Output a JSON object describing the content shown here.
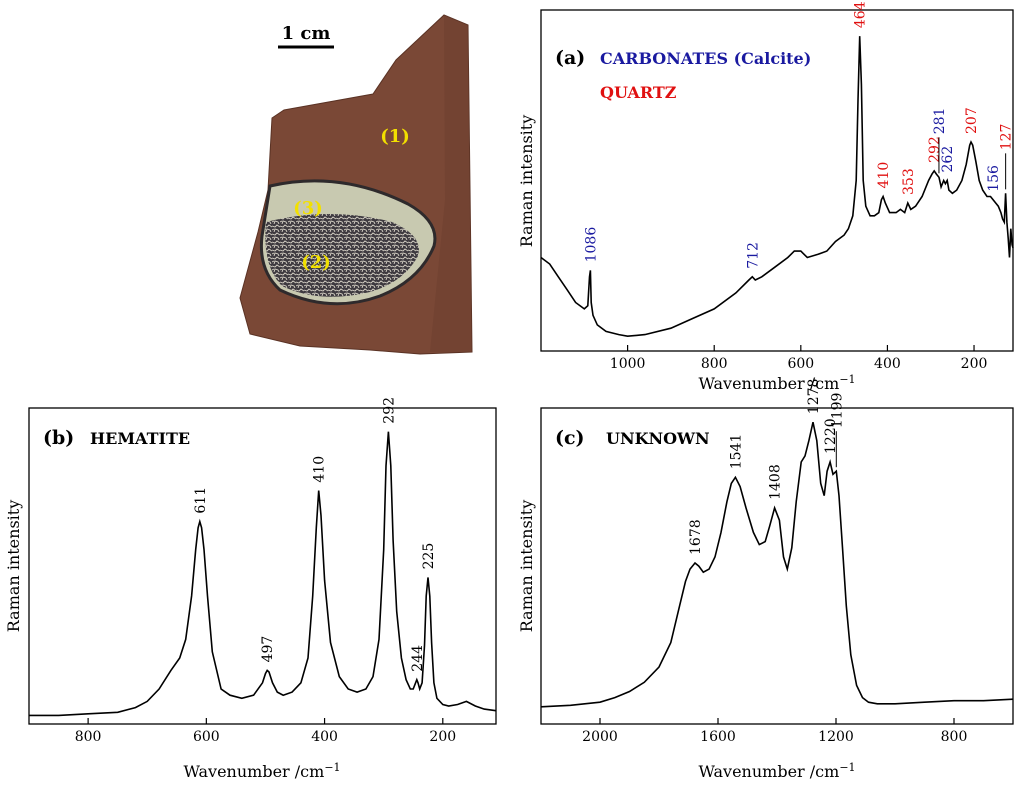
{
  "colors": {
    "carbonate": "#1a1aa0",
    "quartz": "#e01010",
    "spectrum": "#000000",
    "zone_label": "#f2e000",
    "sample_rock": "#7a4836"
  },
  "sample_photo": {
    "scale_bar_label": "1 cm",
    "zone_labels": [
      "(1)",
      "(2)",
      "(3)"
    ]
  },
  "chart_data": [
    {
      "panel": "(a)",
      "type": "line",
      "title_lines": [
        {
          "text": "CARBONATES (Calcite)",
          "color": "#1a1aa0"
        },
        {
          "text": "QUARTZ",
          "color": "#e01010"
        }
      ],
      "xlabel": "Wavenumber /cm",
      "xlabel_sup": "−1",
      "ylabel": "Raman intensity",
      "xlim": [
        1200,
        110
      ],
      "ylim": [
        0,
        1
      ],
      "x_ticks": [
        1000,
        800,
        600,
        400,
        200
      ],
      "x": [
        1200,
        1180,
        1160,
        1140,
        1120,
        1100,
        1092,
        1088,
        1086,
        1084,
        1080,
        1070,
        1050,
        1020,
        1000,
        960,
        900,
        850,
        800,
        750,
        720,
        712,
        705,
        690,
        660,
        630,
        615,
        600,
        585,
        560,
        540,
        520,
        500,
        490,
        480,
        472,
        468,
        464,
        460,
        456,
        450,
        440,
        430,
        420,
        414,
        410,
        405,
        395,
        380,
        370,
        360,
        353,
        346,
        335,
        320,
        305,
        297,
        292,
        287,
        281,
        276,
        270,
        266,
        262,
        258,
        250,
        240,
        228,
        218,
        210,
        207,
        203,
        196,
        188,
        180,
        170,
        162,
        156,
        150,
        144,
        138,
        134,
        130,
        127,
        124,
        121,
        118,
        115,
        112,
        110
      ],
      "y": [
        0.26,
        0.24,
        0.2,
        0.16,
        0.12,
        0.1,
        0.11,
        0.2,
        0.22,
        0.12,
        0.08,
        0.05,
        0.03,
        0.02,
        0.015,
        0.02,
        0.04,
        0.07,
        0.1,
        0.15,
        0.19,
        0.2,
        0.19,
        0.2,
        0.23,
        0.26,
        0.28,
        0.28,
        0.26,
        0.27,
        0.28,
        0.31,
        0.33,
        0.35,
        0.39,
        0.5,
        0.75,
        0.95,
        0.8,
        0.5,
        0.42,
        0.39,
        0.39,
        0.4,
        0.44,
        0.45,
        0.43,
        0.4,
        0.4,
        0.41,
        0.4,
        0.43,
        0.41,
        0.42,
        0.45,
        0.5,
        0.52,
        0.53,
        0.52,
        0.51,
        0.48,
        0.5,
        0.49,
        0.5,
        0.47,
        0.46,
        0.47,
        0.5,
        0.55,
        0.61,
        0.62,
        0.61,
        0.56,
        0.5,
        0.47,
        0.45,
        0.45,
        0.44,
        0.43,
        0.42,
        0.4,
        0.38,
        0.37,
        0.46,
        0.37,
        0.32,
        0.26,
        0.35,
        0.3,
        0.29
      ],
      "annotations": [
        {
          "label": "1086",
          "x": 1086,
          "y": 0.22,
          "color": "#1a1aa0"
        },
        {
          "label": "712",
          "x": 712,
          "y": 0.2,
          "color": "#1a1aa0"
        },
        {
          "label": "464",
          "x": 464,
          "y": 0.95,
          "color": "#e01010"
        },
        {
          "label": "410",
          "x": 410,
          "y": 0.45,
          "color": "#e01010"
        },
        {
          "label": "353",
          "x": 353,
          "y": 0.43,
          "color": "#e01010"
        },
        {
          "label": "292",
          "x": 292,
          "y": 0.53,
          "color": "#e01010"
        },
        {
          "label": "262",
          "x": 262,
          "y": 0.5,
          "color": "#1a1aa0"
        },
        {
          "label": "281",
          "x": 281,
          "y": 0.51,
          "color": "#1a1aa0",
          "leader": true
        },
        {
          "label": "207",
          "x": 207,
          "y": 0.62,
          "color": "#e01010"
        },
        {
          "label": "156",
          "x": 156,
          "y": 0.44,
          "color": "#1a1aa0"
        },
        {
          "label": "127",
          "x": 127,
          "y": 0.46,
          "color": "#e01010",
          "leader": true
        }
      ]
    },
    {
      "panel": "(b)",
      "type": "line",
      "title": "HEMATITE",
      "xlabel": "Wavenumber /cm",
      "xlabel_sup": "−1",
      "ylabel": "Raman intensity",
      "xlim": [
        900,
        110
      ],
      "ylim": [
        0,
        1
      ],
      "x_ticks": [
        800,
        600,
        400,
        200
      ],
      "x": [
        900,
        850,
        800,
        750,
        720,
        700,
        680,
        660,
        645,
        635,
        625,
        618,
        614,
        611,
        608,
        604,
        598,
        590,
        575,
        560,
        540,
        520,
        505,
        500,
        497,
        494,
        488,
        480,
        470,
        455,
        440,
        428,
        420,
        414,
        410,
        406,
        400,
        390,
        375,
        360,
        345,
        330,
        318,
        308,
        300,
        296,
        292,
        288,
        284,
        278,
        270,
        262,
        255,
        250,
        246,
        244,
        242,
        239,
        235,
        231,
        228,
        225,
        222,
        219,
        215,
        210,
        200,
        190,
        175,
        160,
        145,
        130,
        110
      ],
      "y": [
        0.015,
        0.015,
        0.02,
        0.025,
        0.04,
        0.06,
        0.1,
        0.16,
        0.2,
        0.26,
        0.4,
        0.55,
        0.62,
        0.64,
        0.62,
        0.55,
        0.4,
        0.22,
        0.1,
        0.08,
        0.07,
        0.08,
        0.12,
        0.15,
        0.16,
        0.155,
        0.12,
        0.09,
        0.08,
        0.09,
        0.12,
        0.2,
        0.4,
        0.62,
        0.74,
        0.66,
        0.45,
        0.25,
        0.14,
        0.1,
        0.09,
        0.1,
        0.14,
        0.26,
        0.55,
        0.82,
        0.93,
        0.82,
        0.58,
        0.35,
        0.2,
        0.13,
        0.1,
        0.1,
        0.12,
        0.13,
        0.12,
        0.1,
        0.12,
        0.24,
        0.4,
        0.46,
        0.4,
        0.25,
        0.12,
        0.07,
        0.05,
        0.045,
        0.05,
        0.06,
        0.045,
        0.035,
        0.03
      ],
      "annotations": [
        {
          "label": "611",
          "x": 611,
          "y": 0.64
        },
        {
          "label": "497",
          "x": 497,
          "y": 0.16
        },
        {
          "label": "410",
          "x": 410,
          "y": 0.74
        },
        {
          "label": "292",
          "x": 292,
          "y": 0.93
        },
        {
          "label": "244",
          "x": 244,
          "y": 0.13
        },
        {
          "label": "225",
          "x": 225,
          "y": 0.46
        }
      ]
    },
    {
      "panel": "(c)",
      "type": "line",
      "title": "UNKNOWN",
      "xlabel": "Wavenumber /cm",
      "xlabel_sup": "−1",
      "ylabel": "Raman intensity",
      "xlim": [
        2200,
        600
      ],
      "ylim": [
        0,
        1
      ],
      "x_ticks": [
        2000,
        1600,
        1200,
        800
      ],
      "x": [
        2200,
        2100,
        2000,
        1950,
        1900,
        1850,
        1800,
        1760,
        1730,
        1710,
        1695,
        1678,
        1665,
        1650,
        1630,
        1610,
        1590,
        1570,
        1555,
        1541,
        1525,
        1505,
        1480,
        1460,
        1440,
        1425,
        1408,
        1392,
        1378,
        1365,
        1350,
        1335,
        1318,
        1305,
        1292,
        1278,
        1265,
        1252,
        1240,
        1230,
        1220,
        1210,
        1199,
        1190,
        1178,
        1165,
        1150,
        1130,
        1110,
        1090,
        1060,
        1000,
        900,
        800,
        700,
        600
      ],
      "y": [
        0.03,
        0.035,
        0.045,
        0.06,
        0.08,
        0.11,
        0.16,
        0.24,
        0.36,
        0.44,
        0.48,
        0.5,
        0.49,
        0.47,
        0.48,
        0.52,
        0.6,
        0.7,
        0.76,
        0.78,
        0.75,
        0.68,
        0.6,
        0.56,
        0.57,
        0.62,
        0.68,
        0.64,
        0.52,
        0.48,
        0.55,
        0.7,
        0.83,
        0.85,
        0.9,
        0.96,
        0.9,
        0.76,
        0.72,
        0.8,
        0.83,
        0.79,
        0.8,
        0.72,
        0.55,
        0.36,
        0.2,
        0.1,
        0.06,
        0.045,
        0.04,
        0.04,
        0.045,
        0.05,
        0.05,
        0.055
      ],
      "annotations": [
        {
          "label": "1678",
          "x": 1678,
          "y": 0.5
        },
        {
          "label": "1541",
          "x": 1541,
          "y": 0.78
        },
        {
          "label": "1408",
          "x": 1408,
          "y": 0.68
        },
        {
          "label": "1278",
          "x": 1278,
          "y": 0.96
        },
        {
          "label": "1220",
          "x": 1220,
          "y": 0.83
        },
        {
          "label": "1199",
          "x": 1199,
          "y": 0.8,
          "leader": true
        }
      ]
    }
  ]
}
